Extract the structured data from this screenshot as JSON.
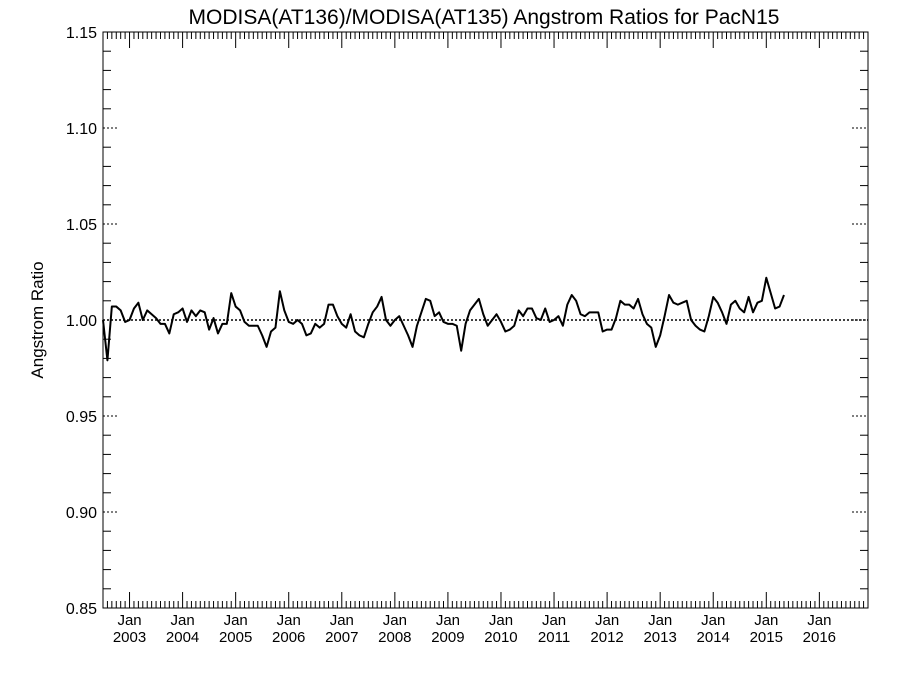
{
  "chart_data": {
    "type": "line",
    "title": "MODISA(AT136)/MODISA(AT135)  Angstrom Ratios for PacN15",
    "xlabel": "",
    "ylabel": "Angstrom Ratio",
    "ylim": [
      0.85,
      1.15
    ],
    "yticks": [
      "0.85",
      "0.90",
      "0.95",
      "1.00",
      "1.05",
      "1.10",
      "1.15"
    ],
    "xlim": [
      "2002-07",
      "2016-12"
    ],
    "xticks": [
      {
        "top": "Jan",
        "bottom": "2003",
        "date": "2003-01"
      },
      {
        "top": "Jan",
        "bottom": "2004",
        "date": "2004-01"
      },
      {
        "top": "Jan",
        "bottom": "2005",
        "date": "2005-01"
      },
      {
        "top": "Jan",
        "bottom": "2006",
        "date": "2006-01"
      },
      {
        "top": "Jan",
        "bottom": "2007",
        "date": "2007-01"
      },
      {
        "top": "Jan",
        "bottom": "2008",
        "date": "2008-01"
      },
      {
        "top": "Jan",
        "bottom": "2009",
        "date": "2009-01"
      },
      {
        "top": "Jan",
        "bottom": "2010",
        "date": "2010-01"
      },
      {
        "top": "Jan",
        "bottom": "2011",
        "date": "2011-01"
      },
      {
        "top": "Jan",
        "bottom": "2012",
        "date": "2012-01"
      },
      {
        "top": "Jan",
        "bottom": "2013",
        "date": "2013-01"
      },
      {
        "top": "Jan",
        "bottom": "2014",
        "date": "2014-01"
      },
      {
        "top": "Jan",
        "bottom": "2015",
        "date": "2015-01"
      },
      {
        "top": "Jan",
        "bottom": "2016",
        "date": "2016-01"
      }
    ],
    "reference_line": {
      "y": 1.0,
      "style": "dotted"
    },
    "grid": false,
    "series": [
      {
        "x_start": "2002-07",
        "x_step": "month",
        "values": [
          1.0,
          0.979,
          1.007,
          1.007,
          1.005,
          0.999,
          1.0,
          1.006,
          1.009,
          1.0,
          1.005,
          1.003,
          1.001,
          0.998,
          0.998,
          0.993,
          1.003,
          1.004,
          1.006,
          0.999,
          1.005,
          1.002,
          1.005,
          1.004,
          0.995,
          1.001,
          0.993,
          0.998,
          0.998,
          1.014,
          1.007,
          1.005,
          0.999,
          0.997,
          0.997,
          0.997,
          0.992,
          0.986,
          0.994,
          0.996,
          1.015,
          1.005,
          0.999,
          0.998,
          1.0,
          0.998,
          0.992,
          0.993,
          0.998,
          0.996,
          0.998,
          1.008,
          1.008,
          1.002,
          0.998,
          0.996,
          1.003,
          0.994,
          0.992,
          0.991,
          0.998,
          1.004,
          1.007,
          1.012,
          1.0,
          0.997,
          1.0,
          1.002,
          0.997,
          0.992,
          0.986,
          0.997,
          1.004,
          1.011,
          1.01,
          1.002,
          1.004,
          0.999,
          0.998,
          0.998,
          0.997,
          0.984,
          0.998,
          1.005,
          1.008,
          1.011,
          1.003,
          0.997,
          1.0,
          1.003,
          0.999,
          0.994,
          0.995,
          0.997,
          1.005,
          1.002,
          1.006,
          1.006,
          1.001,
          1.0,
          1.006,
          0.999,
          1.0,
          1.002,
          0.997,
          1.008,
          1.013,
          1.01,
          1.003,
          1.002,
          1.004,
          1.004,
          1.004,
          0.994,
          0.995,
          0.995,
          1.001,
          1.01,
          1.008,
          1.008,
          1.006,
          1.011,
          1.003,
          0.998,
          0.996,
          0.986,
          0.992,
          1.002,
          1.013,
          1.009,
          1.008,
          1.009,
          1.01,
          1.0,
          0.997,
          0.995,
          0.994,
          1.002,
          1.012,
          1.009,
          1.004,
          0.998,
          1.008,
          1.01,
          1.006,
          1.004,
          1.012,
          1.004,
          1.009,
          1.01,
          1.022,
          1.014,
          1.006,
          1.007,
          1.013
        ]
      }
    ]
  }
}
